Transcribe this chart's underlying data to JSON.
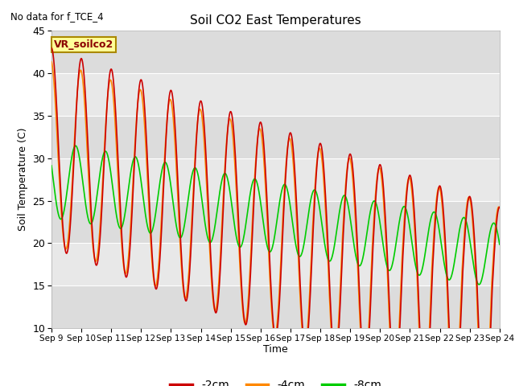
{
  "title": "Soil CO2 East Temperatures",
  "no_data_text": "No data for f_TCE_4",
  "vr_label": "VR_soilco2",
  "xlabel": "Time",
  "ylabel": "Soil Temperature (C)",
  "ylim": [
    10,
    45
  ],
  "xlim": [
    0,
    15
  ],
  "plot_bg_color": "#e8e8e8",
  "fig_bg_color": "#ffffff",
  "x_tick_labels": [
    "Sep 9",
    "Sep 10",
    "Sep 11",
    "Sep 12",
    "Sep 13",
    "Sep 14",
    "Sep 15",
    "Sep 16",
    "Sep 17",
    "Sep 18",
    "Sep 19",
    "Sep 20",
    "Sep 21",
    "Sep 22",
    "Sep 23",
    "Sep 24"
  ],
  "line_2cm_color": "#cc0000",
  "line_4cm_color": "#ff8800",
  "line_8cm_color": "#00cc00",
  "line_width": 1.2,
  "legend_entries": [
    "-2cm",
    "-4cm",
    "-8cm"
  ],
  "grid_color": "#ffffff",
  "band_colors": [
    "#dcdcdc",
    "#e8e8e8"
  ]
}
